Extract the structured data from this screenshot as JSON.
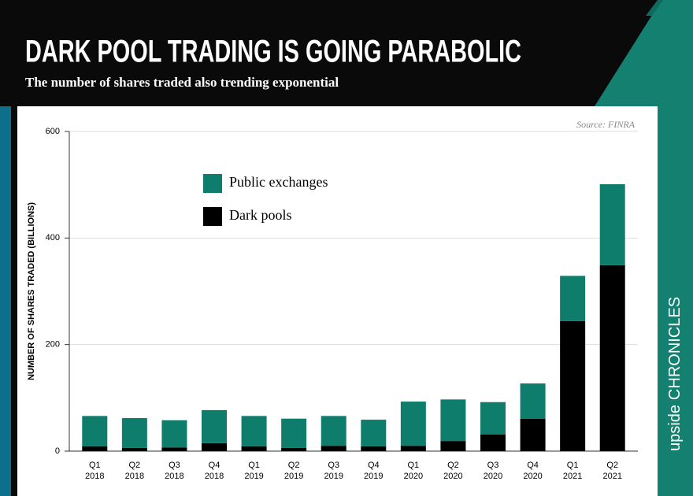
{
  "chart_data": {
    "type": "stacked_bar",
    "title": "DARK POOL TRADING IS GOING PARABOLIC",
    "subtitle": "The number of shares traded also trending exponential",
    "source": "Source: FINRA",
    "brand": [
      "upside",
      "CHRONICLES"
    ],
    "ylabel": "NUMBER OF SHARES TRADED (BILLIONS)",
    "categories": [
      [
        "Q1",
        "2018"
      ],
      [
        "Q2",
        "2018"
      ],
      [
        "Q3",
        "2018"
      ],
      [
        "Q4",
        "2018"
      ],
      [
        "Q1",
        "2019"
      ],
      [
        "Q2",
        "2019"
      ],
      [
        "Q3",
        "2019"
      ],
      [
        "Q4",
        "2019"
      ],
      [
        "Q1",
        "2020"
      ],
      [
        "Q2",
        "2020"
      ],
      [
        "Q3",
        "2020"
      ],
      [
        "Q4",
        "2020"
      ],
      [
        "Q1",
        "2021"
      ],
      [
        "Q2",
        "2021"
      ]
    ],
    "series": [
      {
        "name": "Dark pools",
        "color": "#000000",
        "values": [
          9,
          6,
          7,
          15,
          9,
          6,
          10,
          9,
          10,
          19,
          31,
          61,
          244,
          349
        ]
      },
      {
        "name": "Public exchanges",
        "color": "#0e7d6c",
        "values": [
          57,
          56,
          51,
          62,
          57,
          55,
          56,
          50,
          83,
          78,
          61,
          66,
          85,
          152
        ]
      }
    ],
    "ylim": [
      0,
      600
    ],
    "yticks": [
      0,
      200,
      400,
      600
    ],
    "grid": true,
    "legend": "top-left"
  }
}
